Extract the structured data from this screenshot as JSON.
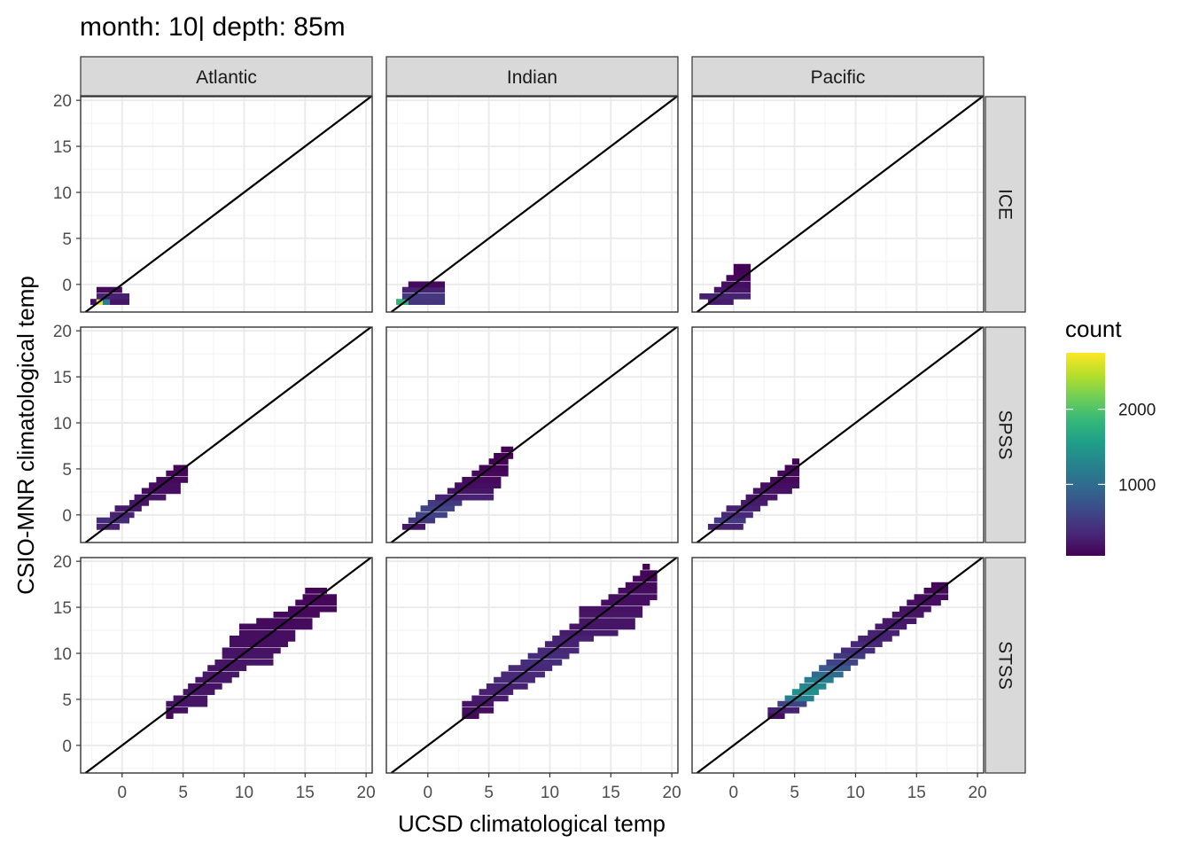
{
  "chart_data": {
    "type": "heatmap",
    "title": "month: 10| depth: 85m",
    "xlabel": "UCSD climatological temp",
    "ylabel": "CSIO-MNR climatological temp",
    "columns": [
      "Atlantic",
      "Indian",
      "Pacific"
    ],
    "rows": [
      "ICE",
      "SPSS",
      "STSS"
    ],
    "xlim": [
      -3.4,
      20.5
    ],
    "ylim": [
      -3.0,
      20.4
    ],
    "xticks": [
      0,
      5,
      10,
      15,
      20
    ],
    "yticks": [
      0,
      5,
      10,
      15,
      20
    ],
    "grid": true,
    "reference_line": "y = x",
    "legend": {
      "title": "count",
      "position": "right",
      "min": 50,
      "max": 2750,
      "ticks": [
        1000,
        2000
      ],
      "colors": [
        "#440154",
        "#482878",
        "#3e4989",
        "#31688e",
        "#26828e",
        "#1f9e89",
        "#35b779",
        "#6ece58",
        "#b5de2b",
        "#fde725"
      ]
    },
    "bin_width": 0.65,
    "panels": [
      {
        "column": "Atlantic",
        "row": "ICE",
        "bands": [
          {
            "y": -1.9,
            "x0": -2.6,
            "x1": -2.1,
            "count": 150
          },
          {
            "y": -1.9,
            "x0": -2.1,
            "x1": -1.6,
            "count": 2700
          },
          {
            "y": -1.9,
            "x0": -1.6,
            "x1": -1.0,
            "count": 1200
          },
          {
            "y": -1.9,
            "x0": -1.0,
            "x1": 0.6,
            "count": 200
          },
          {
            "y": -1.3,
            "x0": -2.1,
            "x1": 0.6,
            "count": 300
          },
          {
            "y": -0.6,
            "x0": -2.1,
            "x1": 0.0,
            "count": 120
          }
        ]
      },
      {
        "column": "Indian",
        "row": "ICE",
        "bands": [
          {
            "y": -1.9,
            "x0": -2.6,
            "x1": -1.6,
            "count": 1800
          },
          {
            "y": -1.9,
            "x0": -1.6,
            "x1": 1.4,
            "count": 450
          },
          {
            "y": -1.3,
            "x0": -2.1,
            "x1": 1.4,
            "count": 500
          },
          {
            "y": -0.6,
            "x0": -2.1,
            "x1": 1.4,
            "count": 300
          },
          {
            "y": 0.0,
            "x0": -1.6,
            "x1": 1.4,
            "count": 120
          }
        ]
      },
      {
        "column": "Pacific",
        "row": "ICE",
        "bands": [
          {
            "y": -1.9,
            "x0": -2.1,
            "x1": 0.0,
            "count": 250
          },
          {
            "y": -1.3,
            "x0": -2.8,
            "x1": 1.4,
            "count": 300
          },
          {
            "y": -0.6,
            "x0": -1.6,
            "x1": 1.4,
            "count": 200
          },
          {
            "y": 0.0,
            "x0": -1.0,
            "x1": 1.4,
            "count": 150
          },
          {
            "y": 0.7,
            "x0": -0.6,
            "x1": 1.4,
            "count": 100
          },
          {
            "y": 1.3,
            "x0": 0.0,
            "x1": 1.4,
            "count": 80
          },
          {
            "y": 1.9,
            "x0": 0.0,
            "x1": 1.4,
            "count": 60
          }
        ]
      },
      {
        "column": "Atlantic",
        "row": "SPSS",
        "bands": [
          {
            "y": -1.3,
            "x0": -2.1,
            "x1": -0.2,
            "count": 300
          },
          {
            "y": -0.6,
            "x0": -2.1,
            "x1": 0.6,
            "count": 400
          },
          {
            "y": 0.0,
            "x0": -1.0,
            "x1": 1.0,
            "count": 300
          },
          {
            "y": 0.7,
            "x0": -0.6,
            "x1": 1.6,
            "count": 250
          },
          {
            "y": 1.3,
            "x0": 0.6,
            "x1": 2.2,
            "count": 200
          },
          {
            "y": 1.9,
            "x0": 1.0,
            "x1": 3.6,
            "count": 200
          },
          {
            "y": 2.6,
            "x0": 1.6,
            "x1": 4.8,
            "count": 150
          },
          {
            "y": 3.2,
            "x0": 2.2,
            "x1": 4.8,
            "count": 150
          },
          {
            "y": 3.8,
            "x0": 2.8,
            "x1": 5.4,
            "count": 120
          },
          {
            "y": 4.5,
            "x0": 3.6,
            "x1": 5.4,
            "count": 100
          },
          {
            "y": 5.1,
            "x0": 4.2,
            "x1": 5.4,
            "count": 80
          }
        ]
      },
      {
        "column": "Indian",
        "row": "SPSS",
        "bands": [
          {
            "y": -1.3,
            "x0": -2.1,
            "x1": -0.2,
            "count": 200
          },
          {
            "y": -0.6,
            "x0": -1.6,
            "x1": 0.6,
            "count": 500
          },
          {
            "y": 0.0,
            "x0": -1.0,
            "x1": 1.6,
            "count": 600
          },
          {
            "y": 0.7,
            "x0": -0.6,
            "x1": 2.2,
            "count": 600
          },
          {
            "y": 1.3,
            "x0": 0.0,
            "x1": 2.8,
            "count": 500
          },
          {
            "y": 1.9,
            "x0": 0.6,
            "x1": 5.4,
            "count": 300
          },
          {
            "y": 2.6,
            "x0": 1.6,
            "x1": 5.4,
            "count": 200
          },
          {
            "y": 3.2,
            "x0": 2.2,
            "x1": 6.0,
            "count": 150
          },
          {
            "y": 3.8,
            "x0": 2.8,
            "x1": 6.0,
            "count": 120
          },
          {
            "y": 4.5,
            "x0": 3.6,
            "x1": 6.6,
            "count": 100
          },
          {
            "y": 5.1,
            "x0": 4.2,
            "x1": 6.6,
            "count": 80
          },
          {
            "y": 5.8,
            "x0": 5.0,
            "x1": 6.6,
            "count": 60
          },
          {
            "y": 6.4,
            "x0": 5.4,
            "x1": 7.0,
            "count": 50
          },
          {
            "y": 7.1,
            "x0": 6.0,
            "x1": 7.0,
            "count": 50
          }
        ]
      },
      {
        "column": "Pacific",
        "row": "SPSS",
        "bands": [
          {
            "y": -1.3,
            "x0": -2.1,
            "x1": 0.8,
            "count": 300
          },
          {
            "y": -0.6,
            "x0": -1.6,
            "x1": 1.0,
            "count": 500
          },
          {
            "y": 0.0,
            "x0": -1.0,
            "x1": 1.6,
            "count": 350
          },
          {
            "y": 0.7,
            "x0": -0.6,
            "x1": 2.2,
            "count": 300
          },
          {
            "y": 1.3,
            "x0": 0.6,
            "x1": 2.8,
            "count": 250
          },
          {
            "y": 1.9,
            "x0": 1.0,
            "x1": 3.6,
            "count": 200
          },
          {
            "y": 2.6,
            "x0": 1.6,
            "x1": 4.8,
            "count": 180
          },
          {
            "y": 3.2,
            "x0": 2.2,
            "x1": 5.4,
            "count": 150
          },
          {
            "y": 3.8,
            "x0": 3.0,
            "x1": 5.4,
            "count": 120
          },
          {
            "y": 4.5,
            "x0": 3.6,
            "x1": 5.4,
            "count": 100
          },
          {
            "y": 5.1,
            "x0": 4.2,
            "x1": 5.4,
            "count": 80
          },
          {
            "y": 5.8,
            "x0": 4.8,
            "x1": 5.4,
            "count": 60
          }
        ]
      },
      {
        "column": "Atlantic",
        "row": "STSS",
        "bands": [
          {
            "y": 3.2,
            "x0": 3.6,
            "x1": 4.2,
            "count": 100
          },
          {
            "y": 3.8,
            "x0": 3.6,
            "x1": 5.4,
            "count": 150
          },
          {
            "y": 4.5,
            "x0": 3.6,
            "x1": 7.0,
            "count": 200
          },
          {
            "y": 5.1,
            "x0": 4.2,
            "x1": 7.0,
            "count": 200
          },
          {
            "y": 5.8,
            "x0": 5.0,
            "x1": 7.6,
            "count": 200
          },
          {
            "y": 6.4,
            "x0": 5.4,
            "x1": 8.2,
            "count": 180
          },
          {
            "y": 7.1,
            "x0": 6.0,
            "x1": 9.0,
            "count": 200
          },
          {
            "y": 7.7,
            "x0": 6.6,
            "x1": 9.6,
            "count": 200
          },
          {
            "y": 8.4,
            "x0": 7.0,
            "x1": 10.2,
            "count": 200
          },
          {
            "y": 9.0,
            "x0": 7.6,
            "x1": 12.4,
            "count": 200
          },
          {
            "y": 9.7,
            "x0": 8.2,
            "x1": 12.4,
            "count": 200
          },
          {
            "y": 10.3,
            "x0": 8.2,
            "x1": 13.0,
            "count": 180
          },
          {
            "y": 11.0,
            "x0": 8.8,
            "x1": 13.6,
            "count": 150
          },
          {
            "y": 11.6,
            "x0": 8.8,
            "x1": 14.2,
            "count": 150
          },
          {
            "y": 12.2,
            "x0": 9.6,
            "x1": 14.2,
            "count": 150
          },
          {
            "y": 12.9,
            "x0": 9.6,
            "x1": 15.6,
            "count": 130
          },
          {
            "y": 13.5,
            "x0": 11.0,
            "x1": 15.6,
            "count": 120
          },
          {
            "y": 14.2,
            "x0": 12.4,
            "x1": 16.2,
            "count": 110
          },
          {
            "y": 14.8,
            "x0": 13.6,
            "x1": 17.6,
            "count": 100
          },
          {
            "y": 15.5,
            "x0": 14.2,
            "x1": 17.6,
            "count": 100
          },
          {
            "y": 16.1,
            "x0": 14.8,
            "x1": 17.6,
            "count": 90
          },
          {
            "y": 16.8,
            "x0": 15.0,
            "x1": 16.8,
            "count": 80
          }
        ]
      },
      {
        "column": "Indian",
        "row": "STSS",
        "bands": [
          {
            "y": 3.2,
            "x0": 2.8,
            "x1": 4.2,
            "count": 100
          },
          {
            "y": 3.8,
            "x0": 2.8,
            "x1": 5.4,
            "count": 150
          },
          {
            "y": 4.5,
            "x0": 2.8,
            "x1": 5.4,
            "count": 200
          },
          {
            "y": 5.1,
            "x0": 3.6,
            "x1": 6.6,
            "count": 250
          },
          {
            "y": 5.8,
            "x0": 4.2,
            "x1": 7.0,
            "count": 300
          },
          {
            "y": 6.4,
            "x0": 4.8,
            "x1": 8.2,
            "count": 300
          },
          {
            "y": 7.1,
            "x0": 5.4,
            "x1": 8.8,
            "count": 350
          },
          {
            "y": 7.7,
            "x0": 6.0,
            "x1": 9.6,
            "count": 350
          },
          {
            "y": 8.4,
            "x0": 6.6,
            "x1": 10.2,
            "count": 350
          },
          {
            "y": 9.0,
            "x0": 7.6,
            "x1": 11.0,
            "count": 400
          },
          {
            "y": 9.7,
            "x0": 8.2,
            "x1": 11.6,
            "count": 400
          },
          {
            "y": 10.3,
            "x0": 9.0,
            "x1": 12.4,
            "count": 350
          },
          {
            "y": 11.0,
            "x0": 9.6,
            "x1": 12.4,
            "count": 300
          },
          {
            "y": 11.6,
            "x0": 10.2,
            "x1": 13.6,
            "count": 300
          },
          {
            "y": 12.2,
            "x0": 10.8,
            "x1": 15.6,
            "count": 250
          },
          {
            "y": 12.9,
            "x0": 11.6,
            "x1": 17.0,
            "count": 200
          },
          {
            "y": 13.5,
            "x0": 12.4,
            "x1": 17.0,
            "count": 200
          },
          {
            "y": 14.2,
            "x0": 12.4,
            "x1": 17.6,
            "count": 200
          },
          {
            "y": 14.8,
            "x0": 12.4,
            "x1": 17.6,
            "count": 180
          },
          {
            "y": 15.5,
            "x0": 14.2,
            "x1": 18.2,
            "count": 160
          },
          {
            "y": 16.1,
            "x0": 14.8,
            "x1": 18.8,
            "count": 150
          },
          {
            "y": 16.8,
            "x0": 15.6,
            "x1": 18.8,
            "count": 140
          },
          {
            "y": 17.4,
            "x0": 16.2,
            "x1": 18.8,
            "count": 120
          },
          {
            "y": 18.1,
            "x0": 16.8,
            "x1": 18.8,
            "count": 100
          },
          {
            "y": 18.7,
            "x0": 17.4,
            "x1": 18.8,
            "count": 80
          },
          {
            "y": 19.4,
            "x0": 17.6,
            "x1": 18.2,
            "count": 60
          }
        ]
      },
      {
        "column": "Pacific",
        "row": "STSS",
        "bands": [
          {
            "y": 3.2,
            "x0": 2.8,
            "x1": 4.2,
            "count": 150
          },
          {
            "y": 3.8,
            "x0": 2.8,
            "x1": 5.4,
            "count": 300
          },
          {
            "y": 4.5,
            "x0": 3.6,
            "x1": 6.0,
            "count": 600
          },
          {
            "y": 5.1,
            "x0": 4.2,
            "x1": 6.6,
            "count": 1200
          },
          {
            "y": 5.8,
            "x0": 4.8,
            "x1": 7.0,
            "count": 1400
          },
          {
            "y": 6.4,
            "x0": 5.4,
            "x1": 7.6,
            "count": 1300
          },
          {
            "y": 7.1,
            "x0": 5.8,
            "x1": 8.2,
            "count": 1200
          },
          {
            "y": 7.7,
            "x0": 6.4,
            "x1": 9.0,
            "count": 1000
          },
          {
            "y": 8.4,
            "x0": 7.0,
            "x1": 9.6,
            "count": 800
          },
          {
            "y": 9.0,
            "x0": 7.6,
            "x1": 10.2,
            "count": 600
          },
          {
            "y": 9.7,
            "x0": 8.2,
            "x1": 10.8,
            "count": 500
          },
          {
            "y": 10.3,
            "x0": 8.8,
            "x1": 11.6,
            "count": 400
          },
          {
            "y": 11.0,
            "x0": 9.6,
            "x1": 12.2,
            "count": 350
          },
          {
            "y": 11.6,
            "x0": 10.2,
            "x1": 13.0,
            "count": 300
          },
          {
            "y": 12.2,
            "x0": 11.0,
            "x1": 13.6,
            "count": 300
          },
          {
            "y": 12.9,
            "x0": 11.6,
            "x1": 14.2,
            "count": 250
          },
          {
            "y": 13.5,
            "x0": 12.2,
            "x1": 15.0,
            "count": 220
          },
          {
            "y": 14.2,
            "x0": 13.0,
            "x1": 15.6,
            "count": 200
          },
          {
            "y": 14.8,
            "x0": 13.6,
            "x1": 16.2,
            "count": 180
          },
          {
            "y": 15.5,
            "x0": 14.2,
            "x1": 17.0,
            "count": 150
          },
          {
            "y": 16.1,
            "x0": 14.8,
            "x1": 17.6,
            "count": 130
          },
          {
            "y": 16.8,
            "x0": 15.6,
            "x1": 17.6,
            "count": 100
          },
          {
            "y": 17.4,
            "x0": 16.2,
            "x1": 17.6,
            "count": 80
          }
        ]
      }
    ]
  }
}
